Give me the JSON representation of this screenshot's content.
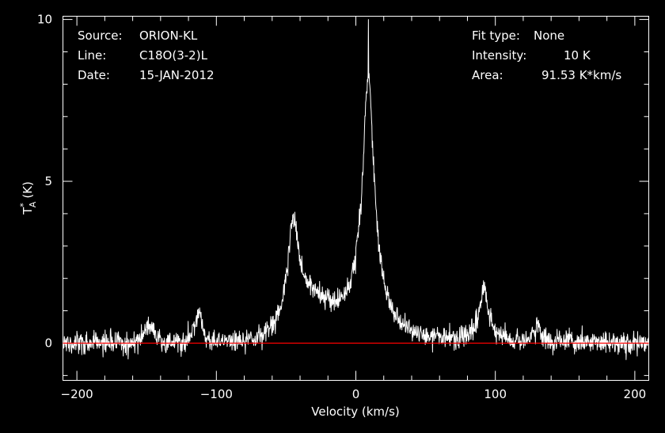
{
  "chart_data": {
    "type": "line",
    "title": "",
    "xlabel": "Velocity (km/s)",
    "ylabel_main": "T",
    "ylabel_super": "*",
    "ylabel_sub": "A",
    "ylabel_unit": "(K)",
    "xlim": [
      -210,
      210
    ],
    "ylim": [
      -1.15,
      10.1
    ],
    "x_ticks": [
      -200,
      -100,
      0,
      100,
      200
    ],
    "x_tick_labels": [
      "−200",
      "−100",
      "0",
      "100",
      "200"
    ],
    "x_minor_step": 20,
    "y_ticks": [
      0,
      5,
      10
    ],
    "y_tick_labels": [
      "0",
      "5",
      "10"
    ],
    "y_minor_step": 1,
    "grid": false,
    "info_left": [
      {
        "key": "Source:",
        "value": "ORION-KL"
      },
      {
        "key": "Line:",
        "value": "C18O(3-2)L"
      },
      {
        "key": "Date:",
        "value": "15-JAN-2012"
      }
    ],
    "info_right": [
      {
        "key": "Fit type:",
        "value": "None"
      },
      {
        "key": "Intensity:",
        "value": "10 K"
      },
      {
        "key": "Area:",
        "value": "91.53 K*km/s"
      }
    ],
    "baseline": 0,
    "noise_rms": 0.17,
    "components": [
      {
        "center": 9,
        "amplitude": 6.3,
        "width": 4.5,
        "shape": "lorentzian"
      },
      {
        "center": 8,
        "amplitude": 2.0,
        "width": 12,
        "shape": "lorentzian"
      },
      {
        "center": -45,
        "amplitude": 3.1,
        "width": 5,
        "shape": "lorentzian"
      },
      {
        "center": -30,
        "amplitude": 1.1,
        "width": 14,
        "shape": "gaussian"
      },
      {
        "center": 92,
        "amplitude": 1.6,
        "width": 4,
        "shape": "lorentzian"
      },
      {
        "center": 130,
        "amplitude": 0.5,
        "width": 3,
        "shape": "gaussian"
      },
      {
        "center": -113,
        "amplitude": 0.85,
        "width": 3,
        "shape": "gaussian"
      },
      {
        "center": -148,
        "amplitude": 0.45,
        "width": 4,
        "shape": "gaussian"
      }
    ],
    "colors": {
      "background": "#000000",
      "axes": "#ffffff",
      "spectrum": "#ffffff",
      "baseline": "#ff0000"
    }
  }
}
